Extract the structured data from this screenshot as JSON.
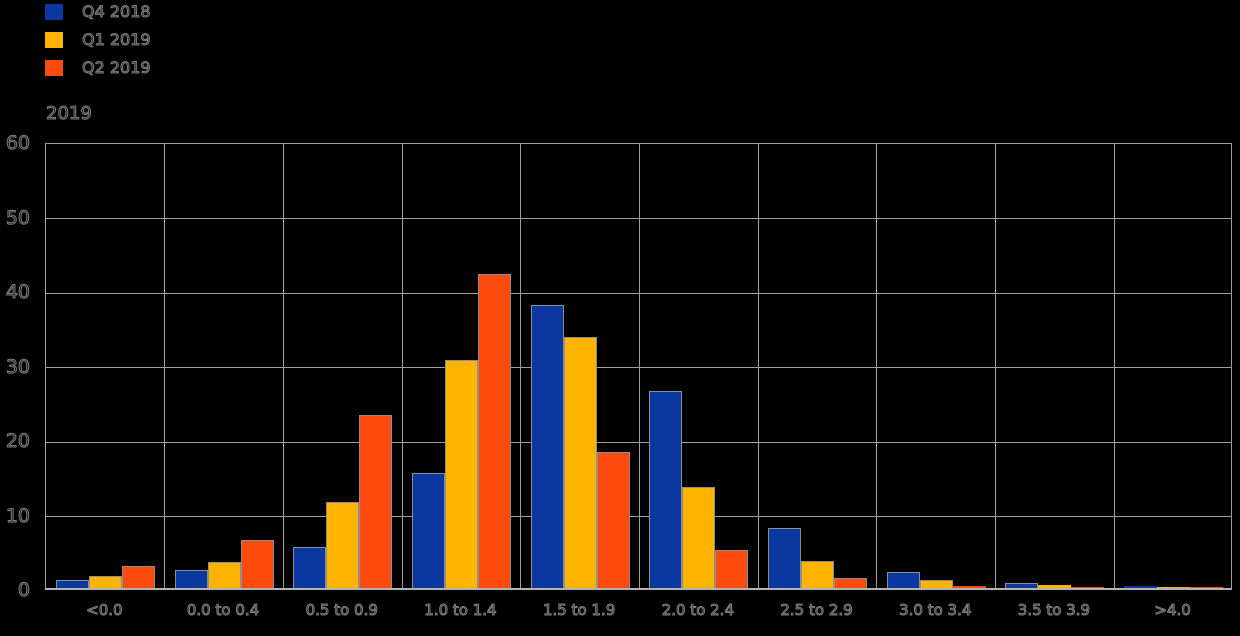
{
  "chart_data": {
    "type": "bar",
    "title": "2019",
    "categories": [
      "<0.0",
      "0.0 to 0.4",
      "0.5 to 0.9",
      "1.0 to 1.4",
      "1.5 to 1.9",
      "2.0 to 2.4",
      "2.5 to 2.9",
      "3.0 to 3.4",
      "3.5 to 3.9",
      ">4.0"
    ],
    "series": [
      {
        "name": "Q4 2018",
        "color": "#0A38A0",
        "values": [
          1.1,
          2.4,
          5.5,
          15.4,
          38.0,
          26.5,
          8.1,
          2.1,
          0.7,
          0.25
        ]
      },
      {
        "name": "Q1 2019",
        "color": "#FFB400",
        "values": [
          1.6,
          3.5,
          11.6,
          30.6,
          33.7,
          13.6,
          3.6,
          1.1,
          0.4,
          0.2
        ]
      },
      {
        "name": "Q2 2019",
        "color": "#FF4A0D",
        "values": [
          3.0,
          6.4,
          23.2,
          42.1,
          18.3,
          5.1,
          1.3,
          0.3,
          0.15,
          0.1
        ]
      }
    ],
    "xlabel": "",
    "ylabel": "",
    "ylim": [
      0,
      60
    ],
    "yticks": [
      0,
      10,
      20,
      30,
      40,
      50,
      60
    ],
    "grid": true,
    "legend_position": "top-left",
    "background_color": "#000000",
    "gridline_color": "#9e9e9e",
    "bar_border_color": "#8f8f8f",
    "text_outline_color": "#7e7e7e"
  }
}
